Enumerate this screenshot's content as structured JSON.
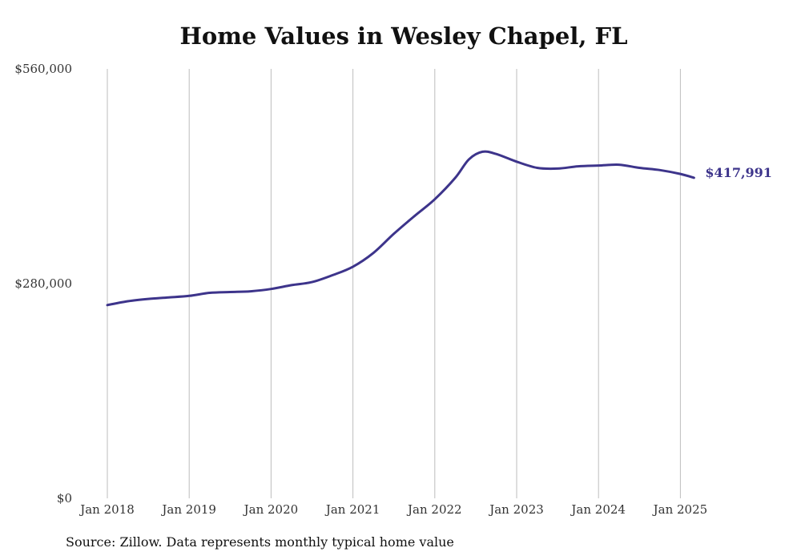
{
  "chart_data": {
    "type": "line",
    "title": "Home Values in Wesley Chapel, FL",
    "xlabel": "",
    "ylabel": "",
    "ylim": [
      0,
      560000
    ],
    "y_ticks": [
      {
        "value": 0,
        "label": "$0"
      },
      {
        "value": 280000,
        "label": "$280,000"
      },
      {
        "value": 560000,
        "label": "$560,000"
      }
    ],
    "x_ticks": [
      {
        "value": 2018,
        "label": "Jan 2018"
      },
      {
        "value": 2019,
        "label": "Jan 2019"
      },
      {
        "value": 2020,
        "label": "Jan 2020"
      },
      {
        "value": 2021,
        "label": "Jan 2021"
      },
      {
        "value": 2022,
        "label": "Jan 2022"
      },
      {
        "value": 2023,
        "label": "Jan 2023"
      },
      {
        "value": 2024,
        "label": "Jan 2024"
      },
      {
        "value": 2025,
        "label": "Jan 2025"
      }
    ],
    "grid": {
      "vertical": true,
      "horizontal": false
    },
    "series": [
      {
        "color": "#3d348b",
        "end_label": "$417,991",
        "points": [
          {
            "date": "2018-01",
            "value": 252000
          },
          {
            "date": "2018-04",
            "value": 257000
          },
          {
            "date": "2018-07",
            "value": 260000
          },
          {
            "date": "2018-10",
            "value": 262000
          },
          {
            "date": "2019-01",
            "value": 264000
          },
          {
            "date": "2019-04",
            "value": 268000
          },
          {
            "date": "2019-07",
            "value": 269000
          },
          {
            "date": "2019-10",
            "value": 270000
          },
          {
            "date": "2020-01",
            "value": 273000
          },
          {
            "date": "2020-04",
            "value": 278000
          },
          {
            "date": "2020-07",
            "value": 282000
          },
          {
            "date": "2020-10",
            "value": 291000
          },
          {
            "date": "2021-01",
            "value": 302000
          },
          {
            "date": "2021-04",
            "value": 320000
          },
          {
            "date": "2021-07",
            "value": 345000
          },
          {
            "date": "2021-10",
            "value": 368000
          },
          {
            "date": "2022-01",
            "value": 390000
          },
          {
            "date": "2022-04",
            "value": 418000
          },
          {
            "date": "2022-06",
            "value": 442000
          },
          {
            "date": "2022-08",
            "value": 452000
          },
          {
            "date": "2022-10",
            "value": 449000
          },
          {
            "date": "2023-01",
            "value": 439000
          },
          {
            "date": "2023-04",
            "value": 431000
          },
          {
            "date": "2023-07",
            "value": 430000
          },
          {
            "date": "2023-10",
            "value": 433000
          },
          {
            "date": "2024-01",
            "value": 434000
          },
          {
            "date": "2024-04",
            "value": 435000
          },
          {
            "date": "2024-07",
            "value": 431000
          },
          {
            "date": "2024-10",
            "value": 428000
          },
          {
            "date": "2025-01",
            "value": 423000
          },
          {
            "date": "2025-03",
            "value": 417991
          }
        ]
      }
    ]
  },
  "source_note": "Source: Zillow. Data represents monthly typical home value"
}
